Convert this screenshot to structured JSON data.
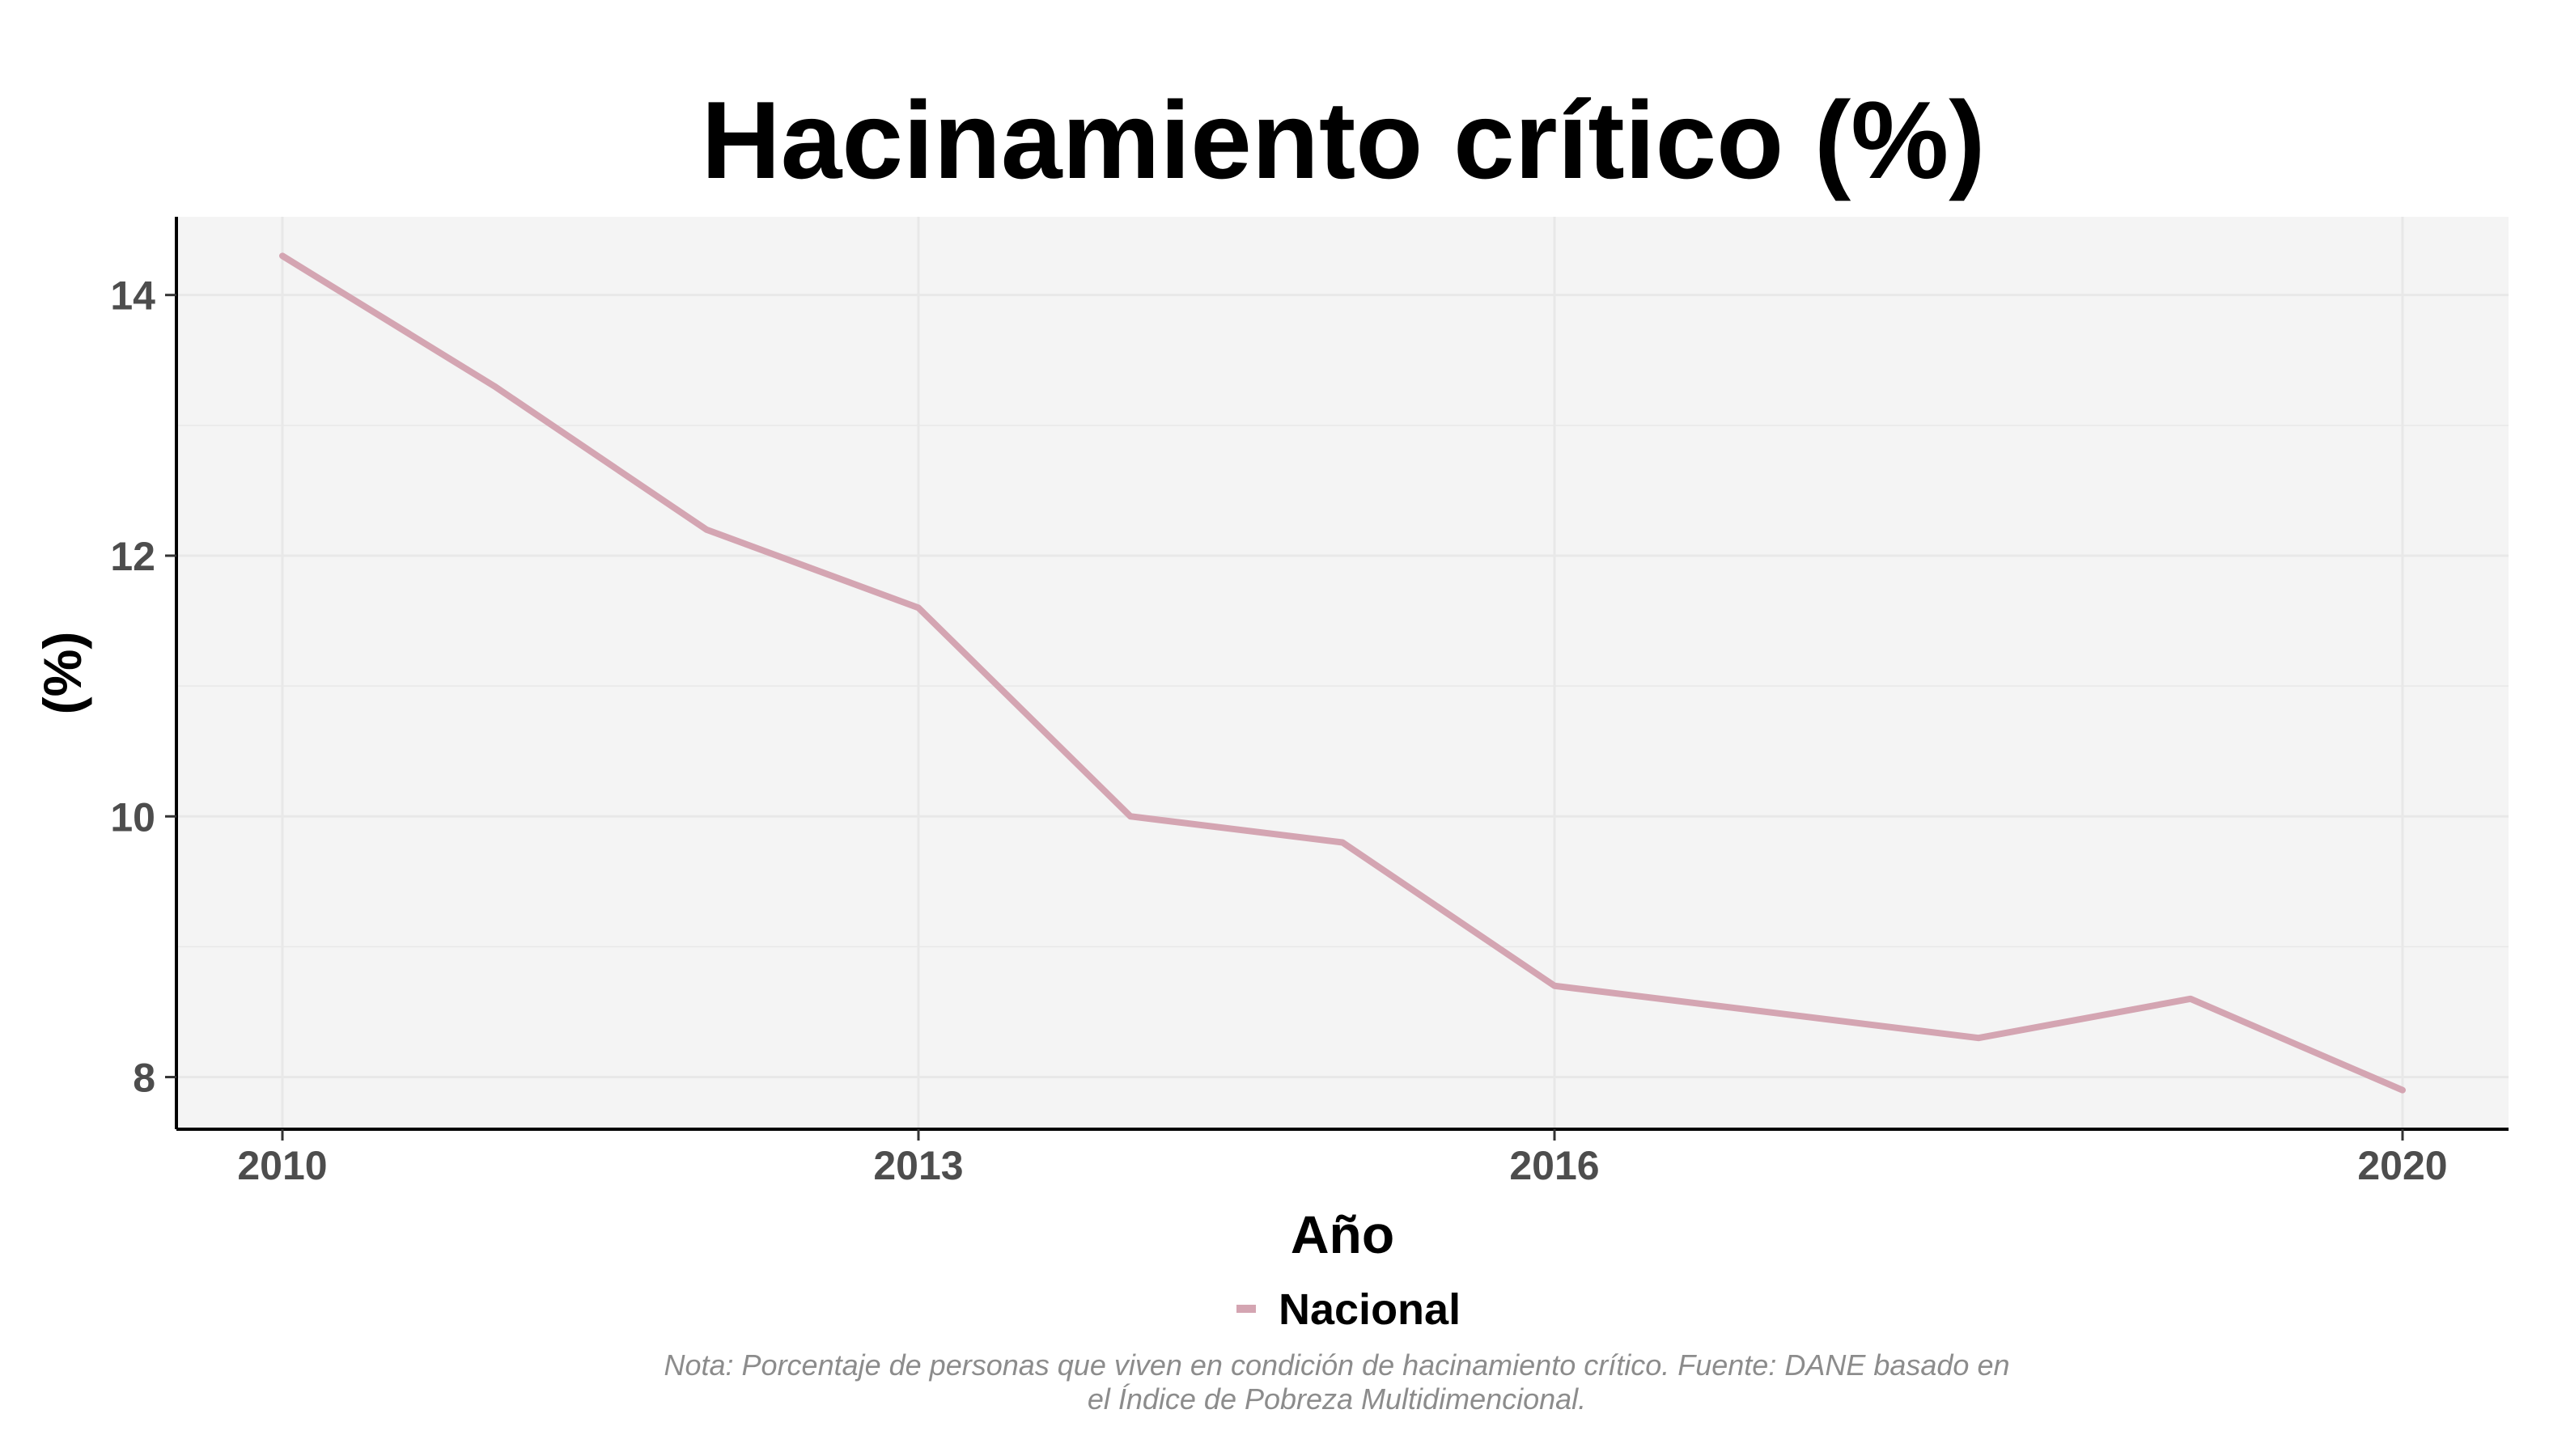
{
  "chart_data": {
    "type": "line",
    "title": "Hacinamiento crítico (%)",
    "xlabel": "Año",
    "ylabel": "(%)",
    "x": [
      2010,
      2011,
      2012,
      2013,
      2014,
      2015,
      2016,
      2018,
      2019,
      2020
    ],
    "series": [
      {
        "name": "Nacional",
        "color": "#d4a5b2",
        "values": [
          14.3,
          13.3,
          12.2,
          11.6,
          10.0,
          9.8,
          8.7,
          8.3,
          8.6,
          7.9
        ]
      }
    ],
    "xlim": [
      2009.5,
      2020.5
    ],
    "ylim": [
      7.6,
      14.6
    ],
    "x_ticks": [
      2010,
      2013,
      2016,
      2020
    ],
    "x_tick_labels": [
      "2010",
      "2013",
      "2016",
      "2020"
    ],
    "y_ticks": [
      8,
      10,
      12,
      14
    ],
    "y_tick_labels": [
      "8",
      "10",
      "12",
      "14"
    ],
    "grid": true,
    "legend_position": "bottom",
    "caption": [
      "Nota: Porcentaje de personas que viven en condición de hacinamiento crítico. Fuente: DANE basado en",
      "el Índice de Pobreza Multidimencional."
    ]
  },
  "colors": {
    "panel_background": "#f4f4f4",
    "grid": "#e8e8e8",
    "axis": "#000000"
  }
}
